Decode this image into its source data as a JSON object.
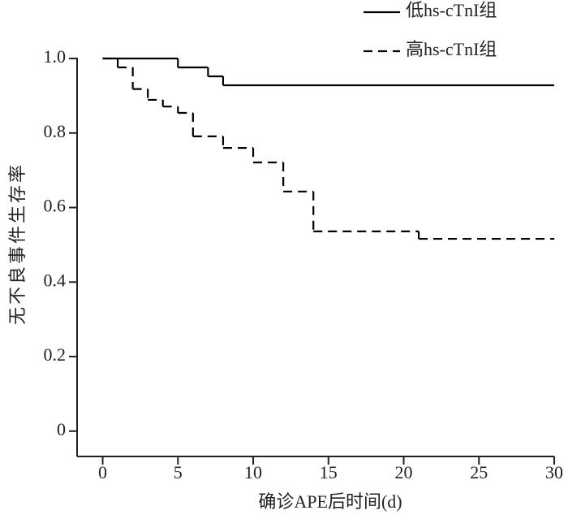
{
  "chart_data": {
    "type": "step",
    "xlabel": "确诊APE后时间(d)",
    "ylabel": "无不良事件生存率",
    "series": [
      {
        "name": "低hs-cTnI组",
        "color": "#000000",
        "dash": "solid",
        "x": [
          0,
          5,
          7,
          8,
          30
        ],
        "values": [
          1.0,
          0.976,
          0.952,
          0.928,
          0.928
        ]
      },
      {
        "name": "高hs-cTnI组",
        "color": "#000000",
        "dash": "dashed",
        "x": [
          0,
          1,
          2,
          3,
          4,
          5,
          6,
          8,
          10,
          12,
          14,
          21,
          30
        ],
        "values": [
          1.0,
          0.976,
          0.918,
          0.889,
          0.871,
          0.854,
          0.791,
          0.76,
          0.721,
          0.643,
          0.536,
          0.516,
          0.516
        ]
      }
    ],
    "xlim": [
      -1.7,
      30
    ],
    "xticks": [
      0,
      5,
      10,
      15,
      20,
      25,
      30
    ],
    "ylim": [
      -0.068,
      1.0
    ],
    "yticks": [
      {
        "value": 1,
        "label": "1.0"
      },
      0.8,
      0.6,
      0.4,
      0.2,
      0
    ],
    "grid": false,
    "legend": "top-right"
  }
}
